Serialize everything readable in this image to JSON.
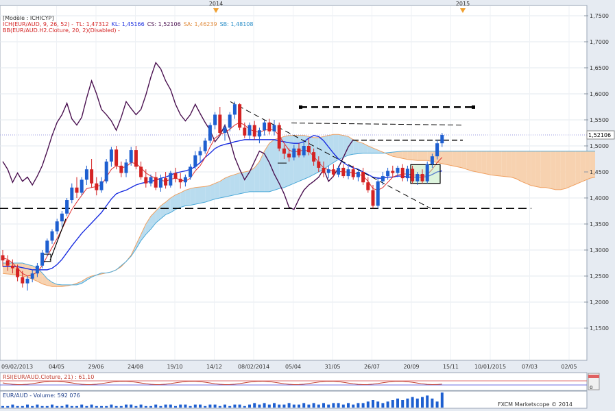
{
  "legend": {
    "model": "[Modèle : ICHICYP]",
    "ich_prefix": "ICH(EUR/AUD, 9, 26, 52) -",
    "tl": "TL: 1,47312",
    "kl": "KL: 1,45166",
    "cs": "CS: 1,52106",
    "sa": "SA: 1,46239",
    "sb": "SB: 1,48108",
    "bb": "BB(EUR/AUD.H2.Cloture, 20, 2)(Disabled) -"
  },
  "top_years": [
    "2014",
    "2015"
  ],
  "price_axis": {
    "ticks": [
      "1,7500",
      "1,7000",
      "1,6500",
      "1,6000",
      "1,5500",
      "1,5000",
      "1,4500",
      "1,4000",
      "1,3500",
      "1,3000",
      "1,2500",
      "1,2000",
      "1,1500"
    ],
    "current_label": "1,52106"
  },
  "time_axis": {
    "ticks": [
      "09/02/2013",
      "04/05",
      "29/06",
      "24/08",
      "19/10",
      "14/12",
      "08/02/2014",
      "05/04",
      "31/05",
      "26/07",
      "20/09",
      "15/11",
      "10/01/2015",
      "07/03",
      "02/05"
    ]
  },
  "rsi": {
    "label": "RSI(EUR/AUD.Cloture, 21) : 61,10",
    "scale_top": "100",
    "scale_bottom": "0"
  },
  "volume": {
    "label": "EUR/AUD - Volume: 592 076"
  },
  "brand": "FXCM Marketscope © 2014",
  "colors": {
    "bull": "#1e5fd0",
    "bear": "#d42323",
    "tenkan": "#e03030",
    "kijun": "#1a2ee0",
    "chikou": "#4a1150",
    "senkou_a": "#f0a060",
    "senkou_b": "#4aa8d8",
    "cloud_bull": "#b9dcef",
    "cloud_bear": "#f7d2b0"
  },
  "chart_data": {
    "type": "candlestick",
    "symbol": "EUR/AUD",
    "ylim": [
      1.1,
      1.78
    ],
    "candles": [
      {
        "o": 1.29,
        "h": 1.3,
        "l": 1.268,
        "c": 1.28
      },
      {
        "o": 1.28,
        "h": 1.29,
        "l": 1.26,
        "c": 1.27
      },
      {
        "o": 1.27,
        "h": 1.282,
        "l": 1.255,
        "c": 1.265
      },
      {
        "o": 1.265,
        "h": 1.272,
        "l": 1.24,
        "c": 1.248
      },
      {
        "o": 1.248,
        "h": 1.26,
        "l": 1.228,
        "c": 1.236
      },
      {
        "o": 1.236,
        "h": 1.25,
        "l": 1.222,
        "c": 1.245
      },
      {
        "o": 1.245,
        "h": 1.262,
        "l": 1.238,
        "c": 1.255
      },
      {
        "o": 1.255,
        "h": 1.275,
        "l": 1.248,
        "c": 1.27
      },
      {
        "o": 1.27,
        "h": 1.3,
        "l": 1.265,
        "c": 1.295
      },
      {
        "o": 1.295,
        "h": 1.322,
        "l": 1.288,
        "c": 1.318
      },
      {
        "o": 1.318,
        "h": 1.34,
        "l": 1.312,
        "c": 1.336
      },
      {
        "o": 1.336,
        "h": 1.36,
        "l": 1.33,
        "c": 1.355
      },
      {
        "o": 1.355,
        "h": 1.375,
        "l": 1.345,
        "c": 1.37
      },
      {
        "o": 1.37,
        "h": 1.4,
        "l": 1.365,
        "c": 1.396
      },
      {
        "o": 1.396,
        "h": 1.428,
        "l": 1.39,
        "c": 1.42
      },
      {
        "o": 1.42,
        "h": 1.44,
        "l": 1.4,
        "c": 1.41
      },
      {
        "o": 1.41,
        "h": 1.44,
        "l": 1.405,
        "c": 1.435
      },
      {
        "o": 1.435,
        "h": 1.462,
        "l": 1.425,
        "c": 1.455
      },
      {
        "o": 1.455,
        "h": 1.475,
        "l": 1.42,
        "c": 1.428
      },
      {
        "o": 1.428,
        "h": 1.44,
        "l": 1.405,
        "c": 1.415
      },
      {
        "o": 1.415,
        "h": 1.44,
        "l": 1.41,
        "c": 1.432
      },
      {
        "o": 1.432,
        "h": 1.475,
        "l": 1.428,
        "c": 1.47
      },
      {
        "o": 1.47,
        "h": 1.498,
        "l": 1.46,
        "c": 1.493
      },
      {
        "o": 1.493,
        "h": 1.5,
        "l": 1.455,
        "c": 1.462
      },
      {
        "o": 1.462,
        "h": 1.47,
        "l": 1.44,
        "c": 1.448
      },
      {
        "o": 1.448,
        "h": 1.475,
        "l": 1.44,
        "c": 1.468
      },
      {
        "o": 1.468,
        "h": 1.498,
        "l": 1.462,
        "c": 1.492
      },
      {
        "o": 1.492,
        "h": 1.5,
        "l": 1.455,
        "c": 1.46
      },
      {
        "o": 1.46,
        "h": 1.47,
        "l": 1.435,
        "c": 1.44
      },
      {
        "o": 1.44,
        "h": 1.455,
        "l": 1.42,
        "c": 1.428
      },
      {
        "o": 1.428,
        "h": 1.445,
        "l": 1.422,
        "c": 1.44
      },
      {
        "o": 1.44,
        "h": 1.45,
        "l": 1.415,
        "c": 1.42
      },
      {
        "o": 1.42,
        "h": 1.445,
        "l": 1.412,
        "c": 1.438
      },
      {
        "o": 1.438,
        "h": 1.45,
        "l": 1.418,
        "c": 1.424
      },
      {
        "o": 1.424,
        "h": 1.452,
        "l": 1.42,
        "c": 1.448
      },
      {
        "o": 1.448,
        "h": 1.458,
        "l": 1.43,
        "c": 1.437
      },
      {
        "o": 1.437,
        "h": 1.448,
        "l": 1.418,
        "c": 1.43
      },
      {
        "o": 1.43,
        "h": 1.445,
        "l": 1.422,
        "c": 1.44
      },
      {
        "o": 1.44,
        "h": 1.465,
        "l": 1.435,
        "c": 1.46
      },
      {
        "o": 1.46,
        "h": 1.49,
        "l": 1.455,
        "c": 1.482
      },
      {
        "o": 1.482,
        "h": 1.498,
        "l": 1.47,
        "c": 1.49
      },
      {
        "o": 1.49,
        "h": 1.515,
        "l": 1.485,
        "c": 1.51
      },
      {
        "o": 1.51,
        "h": 1.545,
        "l": 1.505,
        "c": 1.54
      },
      {
        "o": 1.54,
        "h": 1.565,
        "l": 1.532,
        "c": 1.56
      },
      {
        "o": 1.56,
        "h": 1.575,
        "l": 1.52,
        "c": 1.525
      },
      {
        "o": 1.525,
        "h": 1.54,
        "l": 1.51,
        "c": 1.535
      },
      {
        "o": 1.535,
        "h": 1.565,
        "l": 1.528,
        "c": 1.56
      },
      {
        "o": 1.56,
        "h": 1.585,
        "l": 1.552,
        "c": 1.58
      },
      {
        "o": 1.58,
        "h": 1.582,
        "l": 1.53,
        "c": 1.535
      },
      {
        "o": 1.535,
        "h": 1.545,
        "l": 1.515,
        "c": 1.52
      },
      {
        "o": 1.52,
        "h": 1.545,
        "l": 1.512,
        "c": 1.54
      },
      {
        "o": 1.54,
        "h": 1.548,
        "l": 1.512,
        "c": 1.518
      },
      {
        "o": 1.518,
        "h": 1.535,
        "l": 1.505,
        "c": 1.53
      },
      {
        "o": 1.53,
        "h": 1.55,
        "l": 1.52,
        "c": 1.545
      },
      {
        "o": 1.545,
        "h": 1.552,
        "l": 1.522,
        "c": 1.528
      },
      {
        "o": 1.528,
        "h": 1.55,
        "l": 1.52,
        "c": 1.54
      },
      {
        "o": 1.54,
        "h": 1.545,
        "l": 1.49,
        "c": 1.495
      },
      {
        "o": 1.495,
        "h": 1.502,
        "l": 1.475,
        "c": 1.485
      },
      {
        "o": 1.485,
        "h": 1.495,
        "l": 1.47,
        "c": 1.478
      },
      {
        "o": 1.478,
        "h": 1.502,
        "l": 1.472,
        "c": 1.495
      },
      {
        "o": 1.495,
        "h": 1.505,
        "l": 1.478,
        "c": 1.482
      },
      {
        "o": 1.482,
        "h": 1.508,
        "l": 1.478,
        "c": 1.5
      },
      {
        "o": 1.5,
        "h": 1.515,
        "l": 1.482,
        "c": 1.488
      },
      {
        "o": 1.488,
        "h": 1.495,
        "l": 1.462,
        "c": 1.47
      },
      {
        "o": 1.47,
        "h": 1.48,
        "l": 1.45,
        "c": 1.458
      },
      {
        "o": 1.458,
        "h": 1.47,
        "l": 1.44,
        "c": 1.448
      },
      {
        "o": 1.448,
        "h": 1.462,
        "l": 1.438,
        "c": 1.455
      },
      {
        "o": 1.455,
        "h": 1.465,
        "l": 1.44,
        "c": 1.445
      },
      {
        "o": 1.445,
        "h": 1.462,
        "l": 1.44,
        "c": 1.458
      },
      {
        "o": 1.458,
        "h": 1.465,
        "l": 1.438,
        "c": 1.442
      },
      {
        "o": 1.442,
        "h": 1.46,
        "l": 1.436,
        "c": 1.455
      },
      {
        "o": 1.455,
        "h": 1.462,
        "l": 1.435,
        "c": 1.44
      },
      {
        "o": 1.44,
        "h": 1.455,
        "l": 1.432,
        "c": 1.45
      },
      {
        "o": 1.45,
        "h": 1.458,
        "l": 1.425,
        "c": 1.43
      },
      {
        "o": 1.43,
        "h": 1.44,
        "l": 1.41,
        "c": 1.415
      },
      {
        "o": 1.415,
        "h": 1.425,
        "l": 1.38,
        "c": 1.385
      },
      {
        "o": 1.385,
        "h": 1.44,
        "l": 1.38,
        "c": 1.432
      },
      {
        "o": 1.432,
        "h": 1.45,
        "l": 1.425,
        "c": 1.442
      },
      {
        "o": 1.442,
        "h": 1.458,
        "l": 1.435,
        "c": 1.452
      },
      {
        "o": 1.452,
        "h": 1.462,
        "l": 1.44,
        "c": 1.448
      },
      {
        "o": 1.448,
        "h": 1.462,
        "l": 1.44,
        "c": 1.458
      },
      {
        "o": 1.458,
        "h": 1.465,
        "l": 1.432,
        "c": 1.438
      },
      {
        "o": 1.438,
        "h": 1.462,
        "l": 1.432,
        "c": 1.456
      },
      {
        "o": 1.456,
        "h": 1.462,
        "l": 1.428,
        "c": 1.432
      },
      {
        "o": 1.432,
        "h": 1.45,
        "l": 1.425,
        "c": 1.446
      },
      {
        "o": 1.446,
        "h": 1.455,
        "l": 1.428,
        "c": 1.432
      },
      {
        "o": 1.432,
        "h": 1.47,
        "l": 1.428,
        "c": 1.465
      },
      {
        "o": 1.465,
        "h": 1.485,
        "l": 1.458,
        "c": 1.48
      },
      {
        "o": 1.48,
        "h": 1.512,
        "l": 1.474,
        "c": 1.505
      },
      {
        "o": 1.505,
        "h": 1.525,
        "l": 1.498,
        "c": 1.521
      }
    ],
    "tenkan": [
      1.285,
      1.282,
      1.275,
      1.265,
      1.255,
      1.25,
      1.252,
      1.258,
      1.27,
      1.288,
      1.305,
      1.322,
      1.34,
      1.36,
      1.378,
      1.392,
      1.405,
      1.418,
      1.42,
      1.422,
      1.425,
      1.44,
      1.455,
      1.462,
      1.458,
      1.46,
      1.468,
      1.466,
      1.458,
      1.448,
      1.442,
      1.438,
      1.434,
      1.432,
      1.436,
      1.438,
      1.435,
      1.432,
      1.438,
      1.452,
      1.462,
      1.478,
      1.498,
      1.515,
      1.522,
      1.526,
      1.532,
      1.54,
      1.545,
      1.54,
      1.532,
      1.528,
      1.526,
      1.53,
      1.532,
      1.53,
      1.52,
      1.505,
      1.492,
      1.488,
      1.49,
      1.492,
      1.49,
      1.48,
      1.468,
      1.458,
      1.454,
      1.452,
      1.451,
      1.45,
      1.45,
      1.448,
      1.446,
      1.442,
      1.432,
      1.418,
      1.415,
      1.42,
      1.43,
      1.44,
      1.444,
      1.446,
      1.446,
      1.444,
      1.444,
      1.442,
      1.445,
      1.455,
      1.468,
      1.478
    ],
    "kijun": [
      1.268,
      1.268,
      1.268,
      1.268,
      1.266,
      1.264,
      1.262,
      1.262,
      1.262,
      1.262,
      1.265,
      1.272,
      1.282,
      1.295,
      1.308,
      1.32,
      1.332,
      1.342,
      1.352,
      1.362,
      1.372,
      1.385,
      1.398,
      1.408,
      1.412,
      1.415,
      1.42,
      1.425,
      1.428,
      1.43,
      1.432,
      1.434,
      1.438,
      1.44,
      1.444,
      1.448,
      1.45,
      1.452,
      1.455,
      1.46,
      1.468,
      1.478,
      1.486,
      1.495,
      1.5,
      1.503,
      1.505,
      1.508,
      1.51,
      1.512,
      1.512,
      1.512,
      1.512,
      1.512,
      1.512,
      1.512,
      1.51,
      1.508,
      1.506,
      1.505,
      1.505,
      1.508,
      1.515,
      1.52,
      1.518,
      1.51,
      1.498,
      1.486,
      1.475,
      1.468,
      1.462,
      1.458,
      1.455,
      1.45,
      1.445,
      1.44,
      1.438,
      1.438,
      1.44,
      1.44,
      1.442,
      1.442,
      1.44,
      1.44,
      1.44,
      1.44,
      1.441,
      1.445,
      1.45,
      1.452
    ],
    "senkou_a": [
      1.255,
      1.254,
      1.253,
      1.252,
      1.25,
      1.248,
      1.244,
      1.24,
      1.235,
      1.232,
      1.23,
      1.23,
      1.23,
      1.231,
      1.233,
      1.236,
      1.24,
      1.246,
      1.25,
      1.252,
      1.254,
      1.256,
      1.258,
      1.262,
      1.268,
      1.278,
      1.29,
      1.31,
      1.33,
      1.35,
      1.365,
      1.375,
      1.385,
      1.392,
      1.4,
      1.406,
      1.41,
      1.415,
      1.418,
      1.42,
      1.421,
      1.422,
      1.424,
      1.428,
      1.432,
      1.438,
      1.442,
      1.445,
      1.448,
      1.45,
      1.452,
      1.458,
      1.47,
      1.49,
      1.505,
      1.512,
      1.515,
      1.518,
      1.52,
      1.52,
      1.52,
      1.52,
      1.518,
      1.516,
      1.516,
      1.518,
      1.52,
      1.522,
      1.522,
      1.52,
      1.518,
      1.512,
      1.508,
      1.505,
      1.5,
      1.496,
      1.492,
      1.488,
      1.484,
      1.48,
      1.478,
      1.476,
      1.474,
      1.473,
      1.472,
      1.472,
      1.472,
      1.47,
      1.468,
      1.466,
      1.464,
      1.462,
      1.46,
      1.458,
      1.455,
      1.452,
      1.45,
      1.448,
      1.446,
      1.444,
      1.443,
      1.442,
      1.441,
      1.44,
      1.437,
      1.432,
      1.428,
      1.424,
      1.422,
      1.42,
      1.42,
      1.418,
      1.416,
      1.416,
      1.418,
      1.422,
      1.426,
      1.43,
      1.434,
      1.438,
      1.44
    ],
    "senkou_b": [
      1.275,
      1.275,
      1.275,
      1.275,
      1.275,
      1.272,
      1.27,
      1.265,
      1.256,
      1.245,
      1.238,
      1.234,
      1.233,
      1.233,
      1.233,
      1.233,
      1.236,
      1.242,
      1.248,
      1.252,
      1.256,
      1.256,
      1.258,
      1.262,
      1.27,
      1.278,
      1.288,
      1.302,
      1.318,
      1.33,
      1.34,
      1.352,
      1.36,
      1.368,
      1.372,
      1.378,
      1.382,
      1.385,
      1.386,
      1.388,
      1.39,
      1.392,
      1.395,
      1.398,
      1.4,
      1.402,
      1.404,
      1.406,
      1.408,
      1.41,
      1.412,
      1.412,
      1.412,
      1.412,
      1.412,
      1.415,
      1.418,
      1.42,
      1.424,
      1.428,
      1.432,
      1.436,
      1.44,
      1.445,
      1.45,
      1.455,
      1.462,
      1.468,
      1.474,
      1.478,
      1.482,
      1.484,
      1.485,
      1.486,
      1.486,
      1.486,
      1.486,
      1.486,
      1.487,
      1.488,
      1.489,
      1.49,
      1.49,
      1.49,
      1.49,
      1.49,
      1.49,
      1.49,
      1.49,
      1.49,
      1.49,
      1.49,
      1.49,
      1.49,
      1.49,
      1.49,
      1.49,
      1.49,
      1.49,
      1.49,
      1.49,
      1.49,
      1.49,
      1.49,
      1.49,
      1.49,
      1.49,
      1.49,
      1.49,
      1.49,
      1.49,
      1.49,
      1.49,
      1.49,
      1.49,
      1.49,
      1.49,
      1.49,
      1.49,
      1.49,
      1.49
    ],
    "chikou": [
      1.47,
      1.455,
      1.43,
      1.448,
      1.432,
      1.44,
      1.425,
      1.442,
      1.462,
      1.49,
      1.52,
      1.545,
      1.56,
      1.582,
      1.552,
      1.54,
      1.555,
      1.592,
      1.625,
      1.6,
      1.57,
      1.56,
      1.548,
      1.53,
      1.555,
      1.585,
      1.572,
      1.56,
      1.57,
      1.598,
      1.632,
      1.66,
      1.648,
      1.625,
      1.608,
      1.58,
      1.56,
      1.548,
      1.56,
      1.58,
      1.562,
      1.545,
      1.53,
      1.508,
      1.52,
      1.54,
      1.512,
      1.478,
      1.455,
      1.435,
      1.45,
      1.47,
      1.49,
      1.485,
      1.468,
      1.446,
      1.428,
      1.408,
      1.382,
      1.378,
      1.398,
      1.415,
      1.425,
      1.432,
      1.44,
      1.455,
      1.432,
      1.442,
      1.458,
      1.478,
      1.498,
      1.512
    ]
  },
  "volume_data": [
    1,
    1,
    2,
    1,
    1,
    2,
    1,
    2,
    1,
    1,
    2,
    1,
    1,
    2,
    1,
    1,
    2,
    1,
    2,
    1,
    1,
    1,
    2,
    1,
    1,
    2,
    2,
    1,
    2,
    1,
    1,
    2,
    1,
    2,
    2,
    1,
    2,
    2,
    1,
    2,
    2,
    1,
    2,
    2,
    1,
    2,
    1,
    2,
    2,
    1,
    2,
    3,
    2,
    3,
    2,
    3,
    2,
    2,
    3,
    2,
    2,
    3,
    2,
    3,
    2,
    3,
    2,
    3,
    3,
    2,
    3,
    2,
    3,
    3,
    4,
    5,
    4,
    3,
    4,
    5,
    6,
    5,
    6,
    7,
    6,
    7,
    8,
    6,
    4,
    10
  ]
}
